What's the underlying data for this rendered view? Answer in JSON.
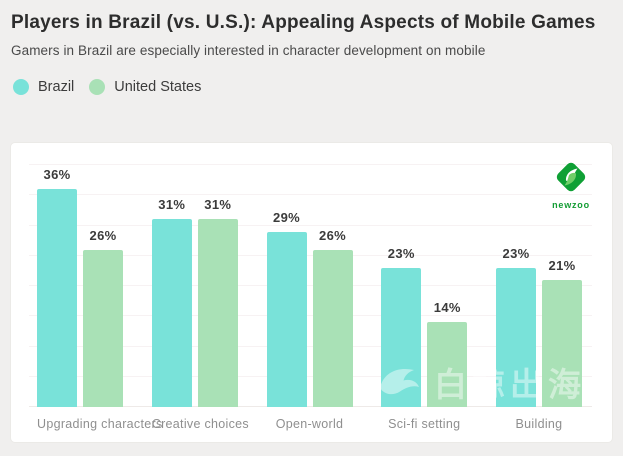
{
  "page": {
    "background": "#f0efee"
  },
  "header": {
    "title": "Players in Brazil (vs. U.S.): Appealing Aspects of Mobile Games",
    "subtitle": "Gamers in Brazil are especially interested in character development on mobile"
  },
  "logo": {
    "text": "newzoo",
    "color": "#129c33"
  },
  "watermark": {
    "text": "白鲸出海"
  },
  "chart_data": {
    "type": "bar",
    "categories": [
      "Upgrading characters",
      "Creative choices",
      "Open-world",
      "Sci-fi setting",
      "Building"
    ],
    "series": [
      {
        "name": "Brazil",
        "color": "#79e2d9",
        "values": [
          36,
          31,
          29,
          23,
          23
        ]
      },
      {
        "name": "United States",
        "color": "#a9e1b6",
        "values": [
          26,
          31,
          26,
          14,
          21
        ]
      }
    ],
    "value_suffix": "%",
    "ylim": [
      0,
      40
    ],
    "gridline_step": 5,
    "grid": true,
    "legend_position": "top-left-above-chart",
    "colors": {
      "value_label": "#3b3b3b",
      "category_label": "#8f8f8f",
      "gridline": "#f7f2f3"
    }
  }
}
